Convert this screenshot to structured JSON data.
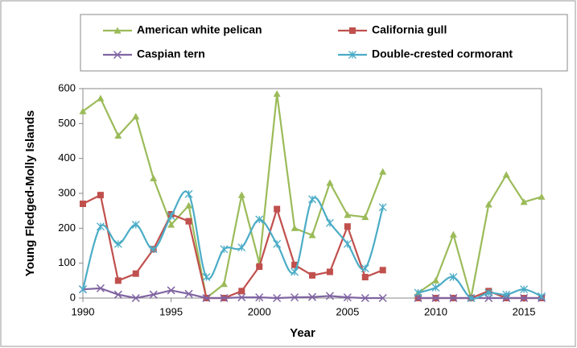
{
  "chart_data": {
    "type": "line",
    "x_label": "Year",
    "y_label": "Young Fledged-Molly Islands",
    "x": [
      1990,
      1991,
      1992,
      1993,
      1994,
      1995,
      1996,
      1997,
      1998,
      1999,
      2000,
      2001,
      2002,
      2003,
      2004,
      2005,
      2006,
      2007,
      2008,
      2009,
      2010,
      2011,
      2012,
      2013,
      2014,
      2015,
      2016
    ],
    "series": [
      {
        "name": "American white pelican",
        "color": "#9bbb59",
        "marker": "triangle",
        "smooth": false,
        "values": [
          535,
          572,
          465,
          520,
          343,
          210,
          265,
          0,
          40,
          295,
          100,
          585,
          200,
          180,
          330,
          238,
          232,
          362,
          null,
          15,
          50,
          182,
          0,
          268,
          353,
          275,
          290
        ]
      },
      {
        "name": "California gull",
        "color": "#c0504d",
        "marker": "square",
        "smooth": false,
        "values": [
          270,
          295,
          50,
          70,
          140,
          240,
          220,
          0,
          0,
          20,
          90,
          255,
          95,
          65,
          75,
          205,
          60,
          80,
          null,
          0,
          0,
          0,
          0,
          20,
          0,
          0,
          0
        ]
      },
      {
        "name": "Caspian tern",
        "color": "#8064a2",
        "marker": "x",
        "smooth": false,
        "values": [
          25,
          28,
          10,
          0,
          10,
          22,
          12,
          0,
          0,
          2,
          2,
          0,
          2,
          3,
          6,
          2,
          0,
          0,
          null,
          0,
          0,
          0,
          0,
          0,
          0,
          0,
          0
        ]
      },
      {
        "name": "Double-crested cormorant",
        "color": "#4bacc6",
        "marker": "star",
        "smooth": true,
        "values": [
          25,
          205,
          155,
          210,
          140,
          235,
          298,
          60,
          140,
          145,
          225,
          155,
          75,
          283,
          215,
          155,
          85,
          260,
          null,
          15,
          30,
          60,
          0,
          15,
          10,
          25,
          5
        ]
      }
    ],
    "xlim": [
      1990,
      2016
    ],
    "xticks": [
      1990,
      1995,
      2000,
      2005,
      2010,
      2015
    ],
    "ylim": [
      0,
      600
    ],
    "yticks": [
      0,
      100,
      200,
      300,
      400,
      500,
      600
    ]
  }
}
